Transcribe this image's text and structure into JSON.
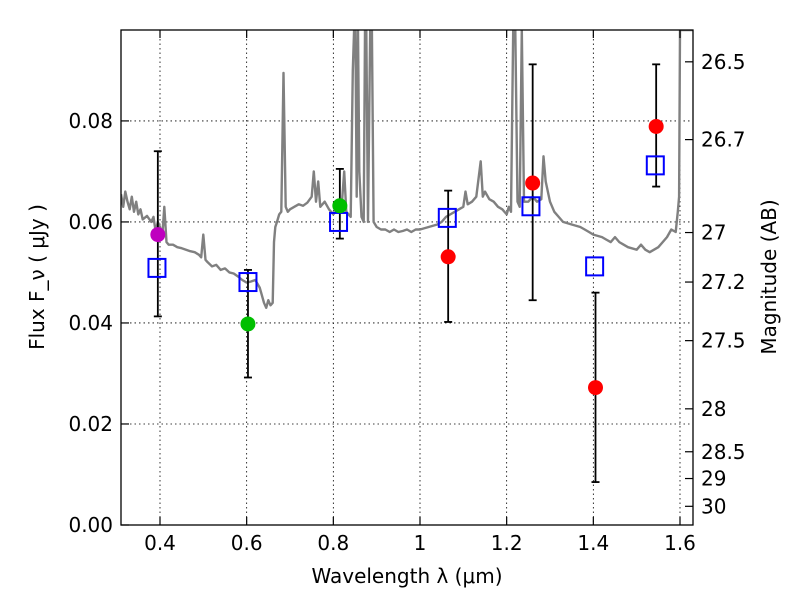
{
  "chart_data": {
    "type": "scatter",
    "xlabel": "Wavelength  λ (μm)",
    "ylabel": "Flux  F_ν  ( μJy )",
    "ylabel_right": "Magnitude (AB)",
    "xlim": [
      0.31,
      1.63
    ],
    "ylim": [
      0.0,
      0.098
    ],
    "x_ticks": [
      0.4,
      0.6,
      0.8,
      1.0,
      1.2,
      1.4,
      1.6
    ],
    "x_tick_labels": [
      "0.4",
      "0.6",
      "0.8",
      "1",
      "1.2",
      "1.4",
      "1.6"
    ],
    "y_ticks": [
      0.0,
      0.02,
      0.04,
      0.06,
      0.08
    ],
    "y_tick_labels": [
      "0.00",
      "0.02",
      "0.04",
      "0.06",
      "0.08"
    ],
    "right_ticks": [
      {
        "label": "26.5",
        "flux": 0.0917
      },
      {
        "label": "26.7",
        "flux": 0.0763
      },
      {
        "label": "27",
        "flux": 0.0579
      },
      {
        "label": "27.2",
        "flux": 0.0481
      },
      {
        "label": "27.5",
        "flux": 0.0365
      },
      {
        "label": "28",
        "flux": 0.023
      },
      {
        "label": "28.5",
        "flux": 0.0145
      },
      {
        "label": "29",
        "flux": 0.0092
      },
      {
        "label": "30",
        "flux": 0.0037
      }
    ],
    "observed": [
      {
        "x": 0.395,
        "y": 0.0575,
        "yerr_low": 0.0413,
        "yerr_high": 0.074,
        "color": "#bf00bf"
      },
      {
        "x": 0.603,
        "y": 0.0398,
        "yerr_low": 0.0292,
        "yerr_high": 0.0505,
        "color": "#00bf00"
      },
      {
        "x": 0.815,
        "y": 0.0632,
        "yerr_low": 0.0567,
        "yerr_high": 0.0705,
        "color": "#00bf00"
      },
      {
        "x": 1.065,
        "y": 0.0531,
        "yerr_low": 0.0402,
        "yerr_high": 0.0662,
        "color": "#ff0000"
      },
      {
        "x": 1.26,
        "y": 0.0677,
        "yerr_low": 0.0445,
        "yerr_high": 0.0912,
        "color": "#ff0000"
      },
      {
        "x": 1.405,
        "y": 0.0272,
        "yerr_low": 0.0085,
        "yerr_high": 0.046,
        "color": "#ff0000"
      },
      {
        "x": 1.545,
        "y": 0.0789,
        "yerr_low": 0.067,
        "yerr_high": 0.0912,
        "color": "#ff0000"
      }
    ],
    "model_points": [
      {
        "x": 0.393,
        "y": 0.0509
      },
      {
        "x": 0.603,
        "y": 0.0481
      },
      {
        "x": 0.812,
        "y": 0.06
      },
      {
        "x": 1.063,
        "y": 0.0608
      },
      {
        "x": 1.256,
        "y": 0.0631
      },
      {
        "x": 1.403,
        "y": 0.0512
      },
      {
        "x": 1.543,
        "y": 0.0712
      }
    ],
    "spectrum": [
      [
        0.31,
        0.0655
      ],
      [
        0.315,
        0.063
      ],
      [
        0.32,
        0.066
      ],
      [
        0.325,
        0.064
      ],
      [
        0.33,
        0.0625
      ],
      [
        0.335,
        0.065
      ],
      [
        0.34,
        0.062
      ],
      [
        0.345,
        0.064
      ],
      [
        0.35,
        0.0615
      ],
      [
        0.355,
        0.0625
      ],
      [
        0.36,
        0.0605
      ],
      [
        0.37,
        0.0612
      ],
      [
        0.38,
        0.06
      ],
      [
        0.385,
        0.061
      ],
      [
        0.39,
        0.058
      ],
      [
        0.395,
        0.06
      ],
      [
        0.4,
        0.059
      ],
      [
        0.405,
        0.057
      ],
      [
        0.41,
        0.063
      ],
      [
        0.415,
        0.056
      ],
      [
        0.42,
        0.0555
      ],
      [
        0.43,
        0.0555
      ],
      [
        0.44,
        0.055
      ],
      [
        0.45,
        0.0548
      ],
      [
        0.46,
        0.0545
      ],
      [
        0.47,
        0.0542
      ],
      [
        0.48,
        0.054
      ],
      [
        0.49,
        0.0535
      ],
      [
        0.495,
        0.053
      ],
      [
        0.5,
        0.0575
      ],
      [
        0.505,
        0.0525
      ],
      [
        0.51,
        0.052
      ],
      [
        0.52,
        0.0512
      ],
      [
        0.53,
        0.0515
      ],
      [
        0.54,
        0.0505
      ],
      [
        0.55,
        0.0508
      ],
      [
        0.56,
        0.05
      ],
      [
        0.57,
        0.0498
      ],
      [
        0.58,
        0.0492
      ],
      [
        0.59,
        0.0485
      ],
      [
        0.6,
        0.048
      ],
      [
        0.61,
        0.0482
      ],
      [
        0.62,
        0.0485
      ],
      [
        0.63,
        0.047
      ],
      [
        0.64,
        0.044
      ],
      [
        0.645,
        0.043
      ],
      [
        0.65,
        0.0445
      ],
      [
        0.655,
        0.0435
      ],
      [
        0.66,
        0.044
      ],
      [
        0.663,
        0.056
      ],
      [
        0.666,
        0.059
      ],
      [
        0.67,
        0.06
      ],
      [
        0.675,
        0.0615
      ],
      [
        0.68,
        0.062
      ],
      [
        0.685,
        0.0895
      ],
      [
        0.69,
        0.063
      ],
      [
        0.695,
        0.062
      ],
      [
        0.7,
        0.0625
      ],
      [
        0.71,
        0.063
      ],
      [
        0.72,
        0.0635
      ],
      [
        0.73,
        0.0632
      ],
      [
        0.74,
        0.0638
      ],
      [
        0.75,
        0.065
      ],
      [
        0.755,
        0.07
      ],
      [
        0.76,
        0.064
      ],
      [
        0.765,
        0.068
      ],
      [
        0.77,
        0.063
      ],
      [
        0.78,
        0.064
      ],
      [
        0.79,
        0.0625
      ],
      [
        0.8,
        0.0615
      ],
      [
        0.81,
        0.0625
      ],
      [
        0.82,
        0.064
      ],
      [
        0.825,
        0.07
      ],
      [
        0.83,
        0.062
      ],
      [
        0.84,
        0.061
      ],
      [
        0.845,
        0.09
      ],
      [
        0.848,
        0.098
      ],
      [
        0.851,
        0.098
      ],
      [
        0.854,
        0.065
      ],
      [
        0.857,
        0.098
      ],
      [
        0.86,
        0.07
      ],
      [
        0.865,
        0.061
      ],
      [
        0.87,
        0.06
      ],
      [
        0.873,
        0.098
      ],
      [
        0.876,
        0.098
      ],
      [
        0.88,
        0.06
      ],
      [
        0.885,
        0.098
      ],
      [
        0.889,
        0.098
      ],
      [
        0.893,
        0.06
      ],
      [
        0.9,
        0.059
      ],
      [
        0.91,
        0.0585
      ],
      [
        0.92,
        0.0585
      ],
      [
        0.93,
        0.058
      ],
      [
        0.94,
        0.0585
      ],
      [
        0.95,
        0.058
      ],
      [
        0.96,
        0.0582
      ],
      [
        0.97,
        0.0585
      ],
      [
        0.98,
        0.058
      ],
      [
        0.99,
        0.0585
      ],
      [
        1.0,
        0.0585
      ],
      [
        1.02,
        0.059
      ],
      [
        1.04,
        0.0595
      ],
      [
        1.05,
        0.06
      ],
      [
        1.06,
        0.061
      ],
      [
        1.07,
        0.0615
      ],
      [
        1.08,
        0.062
      ],
      [
        1.09,
        0.0625
      ],
      [
        1.1,
        0.063
      ],
      [
        1.105,
        0.066
      ],
      [
        1.11,
        0.0635
      ],
      [
        1.12,
        0.064
      ],
      [
        1.13,
        0.065
      ],
      [
        1.14,
        0.072
      ],
      [
        1.145,
        0.065
      ],
      [
        1.15,
        0.066
      ],
      [
        1.16,
        0.0645
      ],
      [
        1.17,
        0.064
      ],
      [
        1.18,
        0.063
      ],
      [
        1.19,
        0.0625
      ],
      [
        1.2,
        0.0615
      ],
      [
        1.205,
        0.063
      ],
      [
        1.21,
        0.062
      ],
      [
        1.215,
        0.098
      ],
      [
        1.22,
        0.098
      ],
      [
        1.225,
        0.064
      ],
      [
        1.23,
        0.063
      ],
      [
        1.235,
        0.098
      ],
      [
        1.24,
        0.064
      ],
      [
        1.25,
        0.064
      ],
      [
        1.26,
        0.065
      ],
      [
        1.27,
        0.064
      ],
      [
        1.28,
        0.0645
      ],
      [
        1.285,
        0.073
      ],
      [
        1.29,
        0.068
      ],
      [
        1.3,
        0.064
      ],
      [
        1.31,
        0.062
      ],
      [
        1.32,
        0.061
      ],
      [
        1.33,
        0.06
      ],
      [
        1.35,
        0.0595
      ],
      [
        1.37,
        0.059
      ],
      [
        1.38,
        0.0585
      ],
      [
        1.39,
        0.058
      ],
      [
        1.4,
        0.0575
      ],
      [
        1.42,
        0.057
      ],
      [
        1.43,
        0.0565
      ],
      [
        1.44,
        0.056
      ],
      [
        1.45,
        0.057
      ],
      [
        1.46,
        0.056
      ],
      [
        1.47,
        0.0555
      ],
      [
        1.48,
        0.055
      ],
      [
        1.5,
        0.0545
      ],
      [
        1.51,
        0.0555
      ],
      [
        1.52,
        0.0545
      ],
      [
        1.53,
        0.054
      ],
      [
        1.54,
        0.0545
      ],
      [
        1.55,
        0.055
      ],
      [
        1.56,
        0.056
      ],
      [
        1.57,
        0.057
      ],
      [
        1.58,
        0.0585
      ],
      [
        1.59,
        0.058
      ],
      [
        1.595,
        0.062
      ],
      [
        1.598,
        0.065
      ],
      [
        1.6,
        0.098
      ],
      [
        1.605,
        0.098
      ],
      [
        1.61,
        0.098
      ],
      [
        1.62,
        0.098
      ],
      [
        1.63,
        0.098
      ]
    ]
  }
}
